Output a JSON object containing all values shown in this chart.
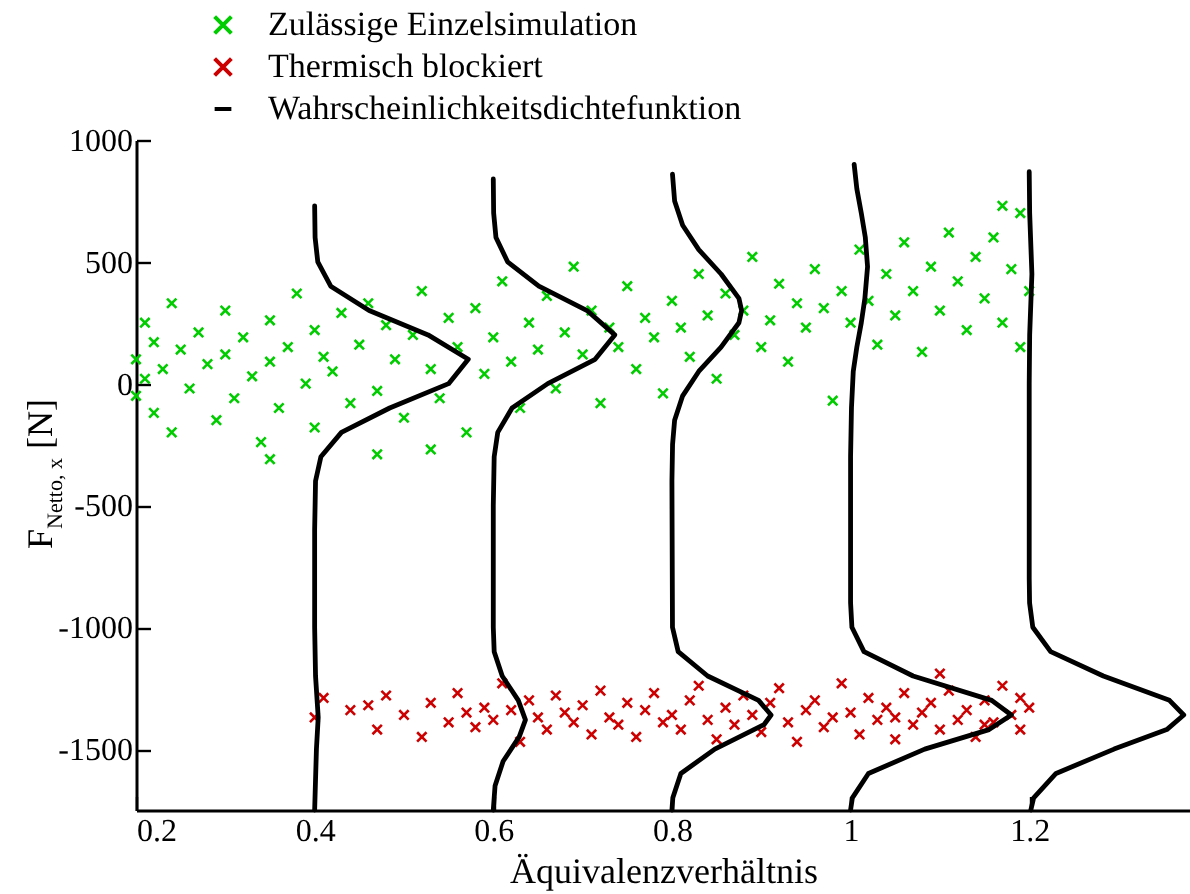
{
  "chart_data": {
    "type": "scatter",
    "xlabel": "Äquivalenzverhältnis",
    "ylabel": "F$_{Netto, x}$ [N]",
    "xlim": [
      0.2,
      1.38
    ],
    "xticks": [
      0.2,
      0.4,
      0.6,
      0.8,
      1,
      1.2
    ],
    "ylim": [
      -1750,
      1000
    ],
    "yticks": [
      -1500,
      -1000,
      -500,
      0,
      500,
      1000
    ],
    "grid": false,
    "legend": "top",
    "series": [
      {
        "marker": "cross",
        "name": "Zulässige Einzelsimulation",
        "color": "#00cc00",
        "x": [
          0.2,
          0.2,
          0.21,
          0.21,
          0.22,
          0.22,
          0.23,
          0.24,
          0.24,
          0.25,
          0.26,
          0.27,
          0.28,
          0.29,
          0.3,
          0.3,
          0.31,
          0.32,
          0.33,
          0.34,
          0.35,
          0.35,
          0.36,
          0.37,
          0.38,
          0.39,
          0.4,
          0.4,
          0.41,
          0.42,
          0.43,
          0.44,
          0.45,
          0.46,
          0.47,
          0.48,
          0.49,
          0.5,
          0.51,
          0.52,
          0.53,
          0.54,
          0.55,
          0.56,
          0.57,
          0.58,
          0.59,
          0.6,
          0.61,
          0.62,
          0.63,
          0.64,
          0.65,
          0.66,
          0.67,
          0.68,
          0.69,
          0.7,
          0.71,
          0.72,
          0.73,
          0.74,
          0.75,
          0.76,
          0.77,
          0.78,
          0.79,
          0.8,
          0.81,
          0.82,
          0.83,
          0.84,
          0.85,
          0.86,
          0.87,
          0.88,
          0.89,
          0.9,
          0.91,
          0.92,
          0.93,
          0.94,
          0.95,
          0.96,
          0.97,
          0.98,
          0.99,
          1,
          1.01,
          1.02,
          1.03,
          1.04,
          1.05,
          1.06,
          1.07,
          1.08,
          1.09,
          1.1,
          1.11,
          1.12,
          1.13,
          1.14,
          1.15,
          1.16,
          1.17,
          1.18,
          1.19,
          1.2,
          1.19,
          1.17,
          0.47,
          0.35,
          0.53
        ],
        "values": [
          100,
          -50,
          250,
          20,
          170,
          -120,
          60,
          330,
          -200,
          140,
          -20,
          210,
          80,
          -150,
          300,
          120,
          -60,
          190,
          30,
          -240,
          260,
          90,
          -100,
          150,
          370,
          0,
          220,
          -180,
          110,
          50,
          290,
          -80,
          160,
          330,
          -30,
          240,
          100,
          -140,
          200,
          380,
          60,
          -60,
          270,
          150,
          -200,
          310,
          40,
          190,
          420,
          90,
          -100,
          250,
          140,
          360,
          -20,
          210,
          480,
          120,
          300,
          -80,
          230,
          150,
          400,
          60,
          270,
          190,
          -40,
          340,
          230,
          110,
          450,
          280,
          20,
          370,
          200,
          300,
          520,
          150,
          260,
          410,
          90,
          330,
          230,
          470,
          310,
          -70,
          380,
          250,
          550,
          340,
          160,
          450,
          280,
          580,
          380,
          130,
          480,
          300,
          620,
          420,
          220,
          520,
          350,
          600,
          250,
          470,
          700,
          380,
          150,
          730,
          -290,
          -310,
          -270
        ]
      },
      {
        "marker": "cross",
        "name": "Thermisch blockiert",
        "color": "#cc0000",
        "x": [
          0.4,
          0.41,
          0.44,
          0.46,
          0.47,
          0.48,
          0.5,
          0.52,
          0.53,
          0.55,
          0.56,
          0.57,
          0.58,
          0.59,
          0.6,
          0.61,
          0.62,
          0.63,
          0.64,
          0.65,
          0.66,
          0.67,
          0.68,
          0.69,
          0.7,
          0.71,
          0.72,
          0.73,
          0.74,
          0.75,
          0.76,
          0.77,
          0.78,
          0.79,
          0.8,
          0.81,
          0.82,
          0.83,
          0.84,
          0.85,
          0.86,
          0.87,
          0.88,
          0.89,
          0.9,
          0.91,
          0.92,
          0.93,
          0.94,
          0.95,
          0.96,
          0.97,
          0.98,
          0.99,
          1,
          1.01,
          1.02,
          1.03,
          1.04,
          1.05,
          1.06,
          1.07,
          1.08,
          1.09,
          1.1,
          1.11,
          1.12,
          1.13,
          1.14,
          1.15,
          1.16,
          1.17,
          1.18,
          1.19,
          1.2,
          1.19,
          1.15,
          1.05,
          1.1
        ],
        "values": [
          -1370,
          -1290,
          -1340,
          -1320,
          -1420,
          -1280,
          -1360,
          -1450,
          -1310,
          -1390,
          -1270,
          -1350,
          -1410,
          -1330,
          -1380,
          -1230,
          -1340,
          -1470,
          -1300,
          -1370,
          -1420,
          -1280,
          -1350,
          -1390,
          -1320,
          -1440,
          -1260,
          -1370,
          -1400,
          -1310,
          -1450,
          -1340,
          -1270,
          -1390,
          -1360,
          -1420,
          -1300,
          -1240,
          -1380,
          -1460,
          -1330,
          -1400,
          -1280,
          -1360,
          -1430,
          -1310,
          -1250,
          -1390,
          -1470,
          -1340,
          -1300,
          -1410,
          -1370,
          -1230,
          -1350,
          -1440,
          -1290,
          -1380,
          -1330,
          -1460,
          -1270,
          -1400,
          -1350,
          -1310,
          -1420,
          -1260,
          -1380,
          -1340,
          -1450,
          -1300,
          -1390,
          -1240,
          -1360,
          -1420,
          -1330,
          -1290,
          -1400,
          -1370,
          -1190
        ]
      },
      {
        "type": "line",
        "marker": "none",
        "name": "Wahrscheinlichkeitsdichtefunktion",
        "color": "#000000",
        "x": [
          0.4,
          0.4005,
          0.4035,
          0.418,
          0.461,
          0.527,
          0.572,
          0.55,
          0.484,
          0.43,
          0.407,
          0.401,
          0.4,
          0.4,
          0.401,
          0.404,
          0.402,
          0.4
        ],
        "values": [
          730,
          600,
          500,
          400,
          300,
          200,
          100,
          0,
          -100,
          -200,
          -300,
          -400,
          -600,
          -1000,
          -1200,
          -1370,
          -1500,
          -1750
        ]
      },
      {
        "type": "line",
        "marker": "none",
        "color": "#000000",
        "x": [
          0.6,
          0.6004,
          0.603,
          0.616,
          0.651,
          0.705,
          0.736,
          0.714,
          0.661,
          0.621,
          0.605,
          0.601,
          0.6,
          0.6,
          0.601,
          0.61,
          0.628,
          0.636,
          0.629,
          0.611,
          0.602,
          0.6
        ],
        "values": [
          840,
          700,
          600,
          500,
          400,
          300,
          200,
          100,
          0,
          -100,
          -200,
          -300,
          -500,
          -1000,
          -1100,
          -1200,
          -1300,
          -1380,
          -1450,
          -1550,
          -1650,
          -1750
        ]
      },
      {
        "type": "line",
        "marker": "none",
        "color": "#000000",
        "x": [
          0.8006,
          0.803,
          0.812,
          0.83,
          0.855,
          0.875,
          0.878,
          0.875,
          0.855,
          0.83,
          0.812,
          0.803,
          0.8007,
          0.8,
          0.8006,
          0.807,
          0.84,
          0.897,
          0.911,
          0.903,
          0.848,
          0.81,
          0.801,
          0.8
        ],
        "values": [
          860,
          750,
          650,
          550,
          450,
          350,
          300,
          250,
          150,
          50,
          -50,
          -150,
          -250,
          -400,
          -1000,
          -1100,
          -1200,
          -1300,
          -1360,
          -1400,
          -1500,
          -1600,
          -1700,
          -1750
        ]
      },
      {
        "type": "line",
        "marker": "none",
        "color": "#000000",
        "x": [
          1.004,
          1.007,
          1.012,
          1.0165,
          1.019,
          1.016,
          1.012,
          1.007,
          1.003,
          1.001,
          1,
          1,
          1.0015,
          1.015,
          1.07,
          1.158,
          1.18,
          1.155,
          1.083,
          1.02,
          1.002,
          1
        ],
        "values": [
          900,
          800,
          700,
          600,
          480,
          350,
          250,
          150,
          50,
          -100,
          -300,
          -900,
          -1000,
          -1100,
          -1200,
          -1300,
          -1360,
          -1420,
          -1500,
          -1600,
          -1700,
          -1750
        ]
      },
      {
        "type": "line",
        "marker": "none",
        "color": "#000000",
        "x": [
          1.2,
          1.2005,
          1.202,
          1.203,
          1.202,
          1.2005,
          1.2,
          1.2,
          1.2004,
          1.204,
          1.224,
          1.283,
          1.357,
          1.373,
          1.354,
          1.295,
          1.23,
          1.205,
          1.2018
        ],
        "values": [
          870,
          700,
          550,
          450,
          350,
          200,
          0,
          -800,
          -900,
          -1000,
          -1100,
          -1200,
          -1300,
          -1360,
          -1420,
          -1500,
          -1600,
          -1700,
          -1750
        ]
      }
    ]
  }
}
